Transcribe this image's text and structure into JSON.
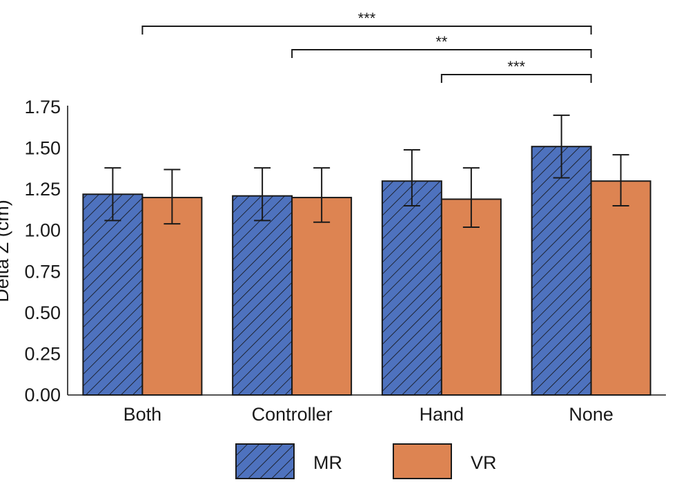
{
  "chart_data": {
    "type": "bar",
    "title": "",
    "xlabel": "",
    "ylabel": "Delta Z (cm)",
    "ylim": [
      0,
      1.75
    ],
    "yticks": [
      "0.00",
      "0.25",
      "0.50",
      "0.75",
      "1.00",
      "1.25",
      "1.50",
      "1.75"
    ],
    "categories": [
      "Both",
      "Controller",
      "Hand",
      "None"
    ],
    "series": [
      {
        "name": "MR",
        "color": "#4e72be",
        "pattern": "diagonal-hatch",
        "values": [
          1.22,
          1.21,
          1.3,
          1.51
        ],
        "err_low": [
          1.06,
          1.06,
          1.15,
          1.32
        ],
        "err_high": [
          1.38,
          1.38,
          1.49,
          1.7
        ]
      },
      {
        "name": "VR",
        "color": "#dd8452",
        "pattern": "solid",
        "values": [
          1.2,
          1.2,
          1.19,
          1.3
        ],
        "err_low": [
          1.04,
          1.05,
          1.02,
          1.15
        ],
        "err_high": [
          1.37,
          1.38,
          1.38,
          1.46
        ]
      }
    ],
    "significance": [
      {
        "from_category": "Both",
        "from_series": "MR",
        "to_category": "None",
        "to_series": "MR",
        "label": "***"
      },
      {
        "from_category": "Controller",
        "from_series": "MR",
        "to_category": "None",
        "to_series": "MR",
        "label": "**"
      },
      {
        "from_category": "Hand",
        "from_series": "MR",
        "to_category": "None",
        "to_series": "MR",
        "label": "***"
      }
    ],
    "grid": false,
    "legend": "bottom-center"
  }
}
